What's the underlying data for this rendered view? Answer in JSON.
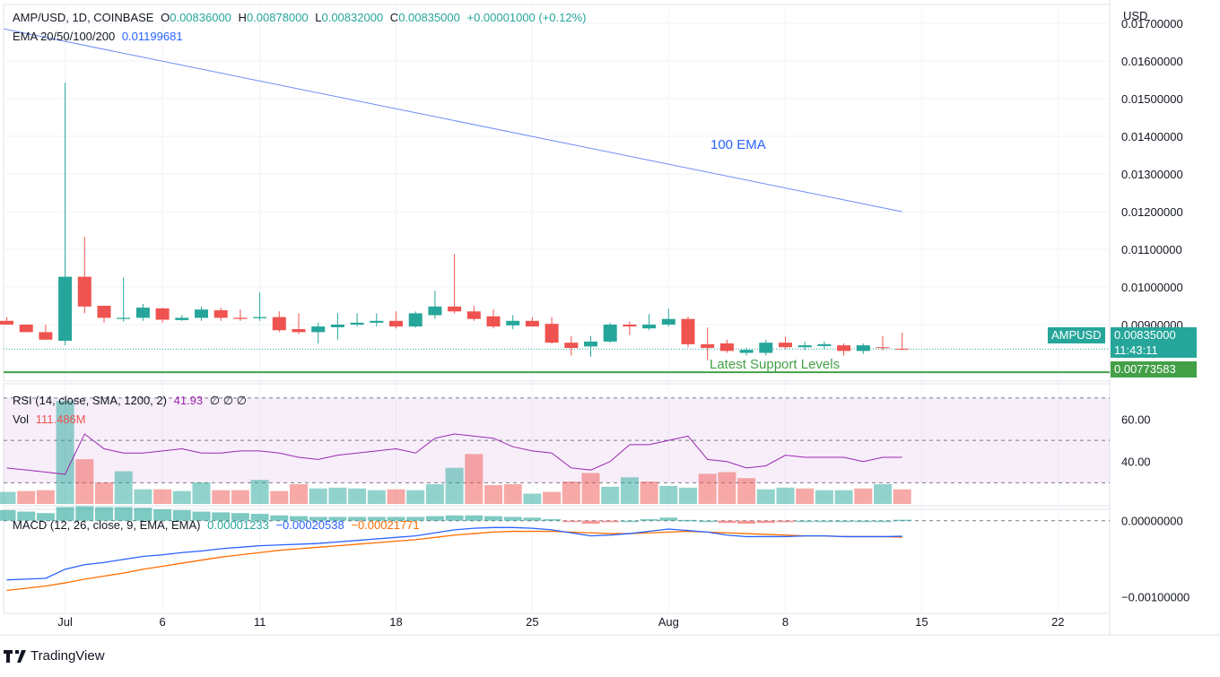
{
  "header": {
    "symbol": "AMP/USD, 1D, COINBASE",
    "open_label": "O",
    "open": "0.00836000",
    "high_label": "H",
    "high": "0.00878000",
    "low_label": "L",
    "low": "0.00832000",
    "close_label": "C",
    "close": "0.00835000",
    "change": "+0.00001000 (+0.12%)",
    "ema_label": "EMA 20/50/100/200",
    "ema_value": "0.01199681"
  },
  "price_axis": {
    "currency": "USD"
  },
  "badges": {
    "symbol": "AMPUSD",
    "price": "0.00835000",
    "countdown": "11:43:11",
    "support": "0.00773583"
  },
  "annotations": {
    "ema": "100 EMA",
    "support": "Latest Support Levels"
  },
  "rsi_legend": {
    "label": "RSI (14, close, SMA, 1200, 2)",
    "value": "41.93",
    "extra": "∅ ∅ ∅"
  },
  "vol_legend": {
    "label": "Vol",
    "value": "111.486M"
  },
  "macd_legend": {
    "label": "MACD (12, 26, close, 9, EMA, EMA)",
    "hist": "0.00001233",
    "macd": "−0.00020538",
    "signal": "−0.00021771"
  },
  "footer": {
    "brand": "TradingView"
  },
  "colors": {
    "up": "#26a69a",
    "down": "#ef5350",
    "ema": "#6d8cf5",
    "support": "#43a047",
    "rsi": "#9c27b0",
    "macd": "#2962ff",
    "signal": "#ff6d00",
    "grid": "#f0f3fa"
  },
  "chart_data": [
    {
      "type": "candlestick",
      "title": "AMP/USD, 1D, COINBASE",
      "x_labels": [
        {
          "label": "Jul",
          "day": 3
        },
        {
          "label": "6",
          "day": 8
        },
        {
          "label": "11",
          "day": 13
        },
        {
          "label": "18",
          "day": 20
        },
        {
          "label": "25",
          "day": 27
        },
        {
          "label": "Aug",
          "day": 34
        },
        {
          "label": "8",
          "day": 40
        },
        {
          "label": "15",
          "day": 47
        },
        {
          "label": "22",
          "day": 54
        }
      ],
      "y_ticks": [
        "0.01700000",
        "0.01600000",
        "0.01500000",
        "0.01400000",
        "0.01300000",
        "0.01200000",
        "0.01100000",
        "0.01000000",
        "0.00900000"
      ],
      "ylim": [
        0.0075,
        0.0175
      ],
      "candles": [
        {
          "o": 0.0091,
          "h": 0.0092,
          "l": 0.009,
          "c": 0.009
        },
        {
          "o": 0.009,
          "h": 0.009,
          "l": 0.0088,
          "c": 0.0088
        },
        {
          "o": 0.0088,
          "h": 0.009,
          "l": 0.0086,
          "c": 0.0086
        },
        {
          "o": 0.00857,
          "h": 0.01542,
          "l": 0.00845,
          "c": 0.01027
        },
        {
          "o": 0.01027,
          "h": 0.01133,
          "l": 0.0093,
          "c": 0.00948
        },
        {
          "o": 0.0095,
          "h": 0.0095,
          "l": 0.00905,
          "c": 0.00918
        },
        {
          "o": 0.00915,
          "h": 0.01025,
          "l": 0.00908,
          "c": 0.00918
        },
        {
          "o": 0.00918,
          "h": 0.00955,
          "l": 0.0091,
          "c": 0.00945
        },
        {
          "o": 0.00943,
          "h": 0.00945,
          "l": 0.00905,
          "c": 0.00913
        },
        {
          "o": 0.00912,
          "h": 0.00925,
          "l": 0.0091,
          "c": 0.00918
        },
        {
          "o": 0.00918,
          "h": 0.00948,
          "l": 0.0091,
          "c": 0.0094
        },
        {
          "o": 0.00938,
          "h": 0.00945,
          "l": 0.0091,
          "c": 0.00918
        },
        {
          "o": 0.00918,
          "h": 0.0094,
          "l": 0.0091,
          "c": 0.00915
        },
        {
          "o": 0.00917,
          "h": 0.00985,
          "l": 0.0091,
          "c": 0.0092
        },
        {
          "o": 0.0092,
          "h": 0.00935,
          "l": 0.0088,
          "c": 0.00885
        },
        {
          "o": 0.00888,
          "h": 0.0093,
          "l": 0.00875,
          "c": 0.0088
        },
        {
          "o": 0.0088,
          "h": 0.00905,
          "l": 0.0085,
          "c": 0.00895
        },
        {
          "o": 0.00893,
          "h": 0.0093,
          "l": 0.0086,
          "c": 0.009
        },
        {
          "o": 0.009,
          "h": 0.0093,
          "l": 0.00895,
          "c": 0.00905
        },
        {
          "o": 0.00905,
          "h": 0.0093,
          "l": 0.00895,
          "c": 0.0091
        },
        {
          "o": 0.0091,
          "h": 0.00935,
          "l": 0.0089,
          "c": 0.00895
        },
        {
          "o": 0.00895,
          "h": 0.00935,
          "l": 0.00892,
          "c": 0.0093
        },
        {
          "o": 0.00925,
          "h": 0.0099,
          "l": 0.00915,
          "c": 0.00948
        },
        {
          "o": 0.00948,
          "h": 0.01087,
          "l": 0.0093,
          "c": 0.00935
        },
        {
          "o": 0.00935,
          "h": 0.0095,
          "l": 0.0091,
          "c": 0.00915
        },
        {
          "o": 0.00922,
          "h": 0.0094,
          "l": 0.0089,
          "c": 0.00895
        },
        {
          "o": 0.00898,
          "h": 0.00925,
          "l": 0.00888,
          "c": 0.0091
        },
        {
          "o": 0.0091,
          "h": 0.0092,
          "l": 0.00895,
          "c": 0.00895
        },
        {
          "o": 0.00902,
          "h": 0.0092,
          "l": 0.0085,
          "c": 0.00852
        },
        {
          "o": 0.00852,
          "h": 0.0087,
          "l": 0.00818,
          "c": 0.00838
        },
        {
          "o": 0.00842,
          "h": 0.0087,
          "l": 0.00815,
          "c": 0.00855
        },
        {
          "o": 0.00855,
          "h": 0.00905,
          "l": 0.00852,
          "c": 0.009
        },
        {
          "o": 0.009,
          "h": 0.00908,
          "l": 0.00872,
          "c": 0.00895
        },
        {
          "o": 0.0089,
          "h": 0.00928,
          "l": 0.00885,
          "c": 0.009
        },
        {
          "o": 0.009,
          "h": 0.00942,
          "l": 0.00895,
          "c": 0.00915
        },
        {
          "o": 0.00915,
          "h": 0.00922,
          "l": 0.0084,
          "c": 0.00848
        },
        {
          "o": 0.00848,
          "h": 0.00892,
          "l": 0.00805,
          "c": 0.00838
        },
        {
          "o": 0.0085,
          "h": 0.0086,
          "l": 0.00825,
          "c": 0.0083
        },
        {
          "o": 0.00825,
          "h": 0.00838,
          "l": 0.00818,
          "c": 0.00833
        },
        {
          "o": 0.00825,
          "h": 0.0086,
          "l": 0.00818,
          "c": 0.00852
        },
        {
          "o": 0.00852,
          "h": 0.00868,
          "l": 0.00835,
          "c": 0.0084
        },
        {
          "o": 0.0084,
          "h": 0.00855,
          "l": 0.00832,
          "c": 0.00845
        },
        {
          "o": 0.00843,
          "h": 0.00855,
          "l": 0.00835,
          "c": 0.00848
        },
        {
          "o": 0.00845,
          "h": 0.0085,
          "l": 0.00818,
          "c": 0.0083
        },
        {
          "o": 0.0083,
          "h": 0.0085,
          "l": 0.00822,
          "c": 0.00845
        },
        {
          "o": 0.0084,
          "h": 0.0087,
          "l": 0.00832,
          "c": 0.00838
        },
        {
          "o": 0.00836,
          "h": 0.00878,
          "l": 0.00832,
          "c": 0.00835
        }
      ],
      "ema100": [
        {
          "day": 0,
          "value": 0.01685
        },
        {
          "day": 46,
          "value": 0.01199681
        }
      ],
      "current_price": 0.00835,
      "support_level": 0.00773583
    },
    {
      "type": "line",
      "title": "RSI (14, close, SMA, 1200, 2)",
      "y_ticks": [
        "60.00",
        "40.00"
      ],
      "ylim": [
        20,
        75
      ],
      "bands": [
        30,
        50,
        70
      ],
      "values": [
        37,
        36,
        35,
        34,
        53,
        46,
        44,
        44,
        45,
        46,
        44,
        44,
        45,
        45,
        44,
        42,
        41,
        43,
        44,
        45,
        46,
        44,
        51,
        53,
        52,
        51,
        47,
        45,
        44,
        37,
        36,
        40,
        48,
        48,
        50,
        52,
        41,
        40,
        37,
        38,
        43,
        42,
        42,
        42,
        40,
        42,
        42
      ]
    },
    {
      "type": "bar",
      "title": "Vol",
      "values": [
        14,
        15,
        16,
        120,
        52,
        25,
        38,
        17,
        17,
        15,
        25,
        16,
        16,
        28,
        15,
        23,
        18,
        19,
        18,
        16,
        17,
        16,
        23,
        42,
        58,
        22,
        23,
        12,
        14,
        26,
        36,
        20,
        31,
        26,
        21,
        19,
        35,
        37,
        30,
        17,
        19,
        18,
        16,
        16,
        18,
        23,
        17
      ],
      "up": [
        true,
        false,
        false,
        true,
        false,
        false,
        true,
        true,
        false,
        true,
        true,
        false,
        false,
        true,
        false,
        false,
        true,
        true,
        true,
        true,
        false,
        true,
        true,
        true,
        false,
        false,
        false,
        true,
        false,
        false,
        false,
        true,
        true,
        false,
        true,
        true,
        false,
        false,
        false,
        true,
        true,
        false,
        true,
        true,
        false,
        true,
        false
      ]
    },
    {
      "type": "line",
      "title": "MACD (12, 26, close, 9, EMA, EMA)",
      "y_ticks": [
        "0.00000000",
        "−0.00100000"
      ],
      "ylim": [
        -0.00115,
        0.00015
      ],
      "macd": [
        -0.00078,
        -0.00077,
        -0.00076,
        -0.00064,
        -0.00058,
        -0.00055,
        -0.00051,
        -0.00047,
        -0.00045,
        -0.00042,
        -0.0004,
        -0.00037,
        -0.00035,
        -0.00033,
        -0.00032,
        -0.00031,
        -0.0003,
        -0.00028,
        -0.00026,
        -0.00024,
        -0.00022,
        -0.0002,
        -0.00016,
        -0.00012,
        -0.0001,
        -9e-05,
        -9e-05,
        -0.0001,
        -0.00012,
        -0.00016,
        -0.0002,
        -0.00019,
        -0.00017,
        -0.00014,
        -0.00011,
        -0.00013,
        -0.00015,
        -0.00019,
        -0.00021,
        -0.00021,
        -0.00021,
        -0.0002,
        -0.0002,
        -0.00021,
        -0.00021,
        -0.00021,
        -0.00020538
      ],
      "signal": [
        -0.00092,
        -0.00089,
        -0.00086,
        -0.00082,
        -0.00077,
        -0.00073,
        -0.00069,
        -0.00064,
        -0.0006,
        -0.00056,
        -0.00052,
        -0.00048,
        -0.00045,
        -0.00042,
        -0.00039,
        -0.00037,
        -0.00035,
        -0.00033,
        -0.00031,
        -0.00029,
        -0.00027,
        -0.00025,
        -0.00022,
        -0.00019,
        -0.00017,
        -0.00015,
        -0.00014,
        -0.00014,
        -0.00014,
        -0.00015,
        -0.00016,
        -0.00017,
        -0.00017,
        -0.00016,
        -0.00015,
        -0.00014,
        -0.00015,
        -0.00016,
        -0.00017,
        -0.00018,
        -0.00019,
        -0.0002,
        -0.0002,
        -0.00021,
        -0.00021,
        -0.00021,
        -0.00021771
      ]
    }
  ]
}
